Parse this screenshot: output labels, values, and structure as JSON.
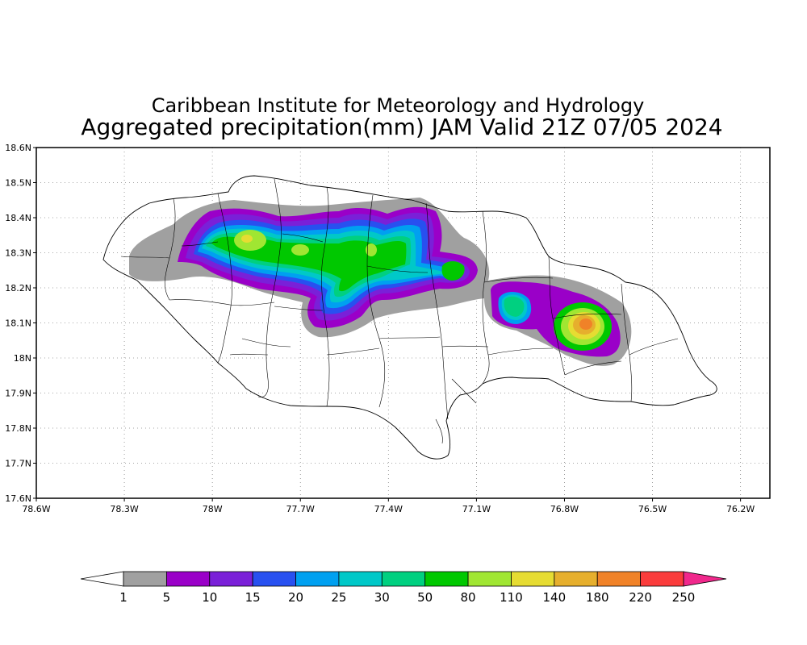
{
  "title": {
    "line1": "Caribbean Institute for Meteorology and Hydrology",
    "line2": "Aggregated precipitation(mm) JAM Valid 21Z 07/05 2024"
  },
  "axes": {
    "lon_ticks": [
      "78.6W",
      "78.3W",
      "78W",
      "77.7W",
      "77.4W",
      "77.1W",
      "76.8W",
      "76.5W",
      "76.2W"
    ],
    "lat_ticks": [
      "18.6N",
      "18.5N",
      "18.4N",
      "18.3N",
      "18.2N",
      "18.1N",
      "18N",
      "17.9N",
      "17.8N",
      "17.7N",
      "17.6N"
    ],
    "lon_range": [
      -78.6,
      -76.1
    ],
    "lat_range": [
      17.6,
      18.6
    ],
    "grid": "dotted"
  },
  "colorbar": {
    "labels": [
      "1",
      "5",
      "10",
      "15",
      "20",
      "25",
      "30",
      "50",
      "80",
      "110",
      "140",
      "180",
      "220",
      "250"
    ],
    "colors": [
      "#a0a0a0",
      "#9a00c8",
      "#7a20d8",
      "#2850f0",
      "#00a0f0",
      "#00c8c8",
      "#00d080",
      "#00c800",
      "#a0e632",
      "#e6dc32",
      "#e6af2d",
      "#f08228",
      "#fa3c3c",
      "#f0288c"
    ]
  },
  "map": {
    "features": [
      {
        "name": "western-rain-band",
        "lon": -77.7,
        "lat": 18.32,
        "peak_mm": 110
      },
      {
        "name": "central-rain-band",
        "lon": -77.35,
        "lat": 18.3,
        "peak_mm": 80
      },
      {
        "name": "eastern-cell-small",
        "lon": -76.88,
        "lat": 18.15,
        "peak_mm": 50
      },
      {
        "name": "eastern-cell-max",
        "lon": -76.65,
        "lat": 18.1,
        "peak_mm": 220
      }
    ]
  }
}
